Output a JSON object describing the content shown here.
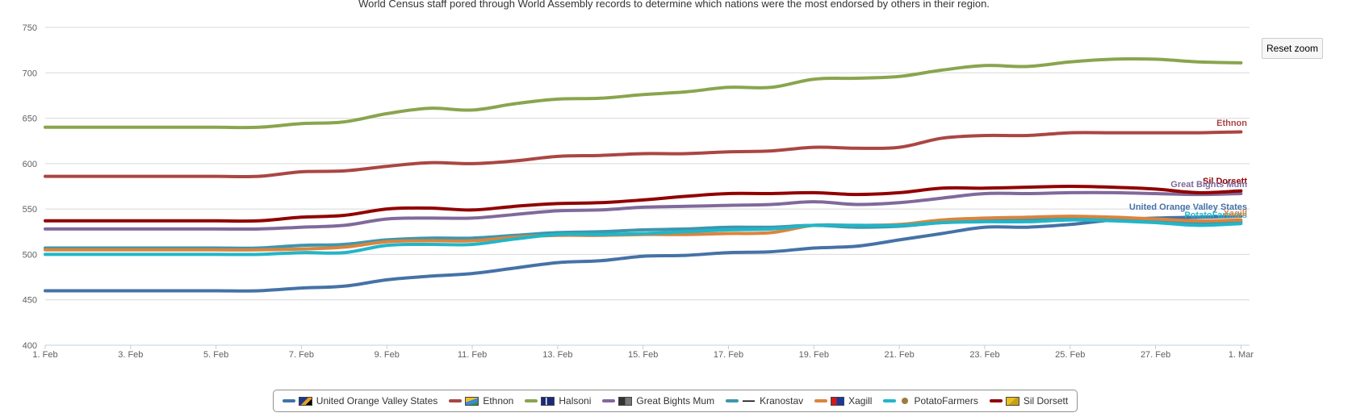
{
  "subtitle": "World Census staff pored through World Assembly records to determine which nations were the most endorsed by others in their region.",
  "reset_zoom_label": "Reset zoom",
  "chart_data": {
    "type": "line",
    "title": "",
    "subtitle": "World Census staff pored through World Assembly records to determine which nations were the most endorsed by others in their region.",
    "xlabel": "",
    "ylabel": "",
    "ylim": [
      400,
      750
    ],
    "y_ticks": [
      400,
      450,
      500,
      550,
      600,
      650,
      700,
      750
    ],
    "x_day_range": [
      1,
      29.2
    ],
    "x_ticks": [
      {
        "day": 1,
        "label": "1. Feb"
      },
      {
        "day": 3,
        "label": "3. Feb"
      },
      {
        "day": 5,
        "label": "5. Feb"
      },
      {
        "day": 7,
        "label": "7. Feb"
      },
      {
        "day": 9,
        "label": "9. Feb"
      },
      {
        "day": 11,
        "label": "11. Feb"
      },
      {
        "day": 13,
        "label": "13. Feb"
      },
      {
        "day": 15,
        "label": "15. Feb"
      },
      {
        "day": 17,
        "label": "17. Feb"
      },
      {
        "day": 19,
        "label": "19. Feb"
      },
      {
        "day": 21,
        "label": "21. Feb"
      },
      {
        "day": 23,
        "label": "23. Feb"
      },
      {
        "day": 25,
        "label": "25. Feb"
      },
      {
        "day": 27,
        "label": "27. Feb"
      },
      {
        "day": 29,
        "label": "1. Mar"
      }
    ],
    "x": [
      1,
      2,
      3,
      4,
      5,
      6,
      7,
      8,
      9,
      10,
      11,
      12,
      13,
      14,
      15,
      16,
      17,
      18,
      19,
      20,
      21,
      22,
      23,
      24,
      25,
      26,
      27,
      28,
      29
    ],
    "grid": true,
    "legend_position": "bottom-center",
    "series": [
      {
        "name": "United Orange Valley States",
        "color": "#4572a7",
        "flag": "uovs-flag",
        "values": [
          460,
          460,
          460,
          460,
          460,
          460,
          463,
          465,
          472,
          476,
          479,
          485,
          491,
          493,
          498,
          499,
          502,
          503,
          507,
          509,
          516,
          523,
          530,
          530,
          533,
          538,
          540,
          541,
          542
        ]
      },
      {
        "name": "Ethnon",
        "color": "#aa4643",
        "flag": "ethnon-flag",
        "values": [
          586,
          586,
          586,
          586,
          586,
          586,
          591,
          592,
          597,
          601,
          600,
          603,
          608,
          609,
          611,
          611,
          613,
          614,
          618,
          617,
          618,
          628,
          631,
          631,
          634,
          634,
          634,
          634,
          635
        ]
      },
      {
        "name": "Halsoni",
        "color": "#89a54e",
        "flag": "halsoni-flag",
        "values": [
          640,
          640,
          640,
          640,
          640,
          640,
          644,
          646,
          655,
          661,
          659,
          666,
          671,
          672,
          676,
          679,
          684,
          684,
          693,
          694,
          696,
          703,
          708,
          707,
          712,
          715,
          715,
          712,
          711
        ]
      },
      {
        "name": "Great Bights Mum",
        "color": "#80699b",
        "flag": "gbm-flag",
        "values": [
          528,
          528,
          528,
          528,
          528,
          528,
          530,
          532,
          539,
          540,
          540,
          544,
          548,
          549,
          552,
          553,
          554,
          555,
          558,
          555,
          557,
          562,
          567,
          567,
          568,
          568,
          567,
          566,
          567
        ]
      },
      {
        "name": "Kranostav",
        "color": "#3d96ae",
        "flag": "kranostav-flag",
        "values": [
          507,
          507,
          507,
          507,
          507,
          507,
          510,
          511,
          516,
          518,
          518,
          521,
          524,
          525,
          527,
          528,
          530,
          530,
          532,
          530,
          531,
          535,
          537,
          538,
          539,
          538,
          537,
          535,
          536
        ]
      },
      {
        "name": "Xagill",
        "color": "#db843d",
        "flag": "xagill-flag",
        "values": [
          505,
          505,
          505,
          505,
          505,
          505,
          506,
          508,
          514,
          515,
          515,
          519,
          521,
          521,
          522,
          522,
          523,
          524,
          532,
          532,
          533,
          538,
          540,
          541,
          542,
          541,
          539,
          537,
          538
        ]
      },
      {
        "name": "PotatoFarmers",
        "color": "#21b6c8",
        "flag": "potato-flag",
        "values": [
          500,
          500,
          500,
          500,
          500,
          500,
          502,
          502,
          510,
          511,
          511,
          517,
          522,
          522,
          523,
          525,
          527,
          528,
          532,
          532,
          532,
          535,
          536,
          536,
          538,
          537,
          535,
          532,
          534
        ]
      },
      {
        "name": "Sil Dorsett",
        "color": "#910000",
        "flag": "sildorsett-flag",
        "values": [
          537,
          537,
          537,
          537,
          537,
          537,
          541,
          543,
          550,
          551,
          549,
          553,
          556,
          557,
          560,
          564,
          567,
          567,
          568,
          566,
          568,
          573,
          573,
          574,
          575,
          574,
          572,
          568,
          570
        ]
      }
    ],
    "end_labels": [
      {
        "text": "Ethnon",
        "color": "#aa4643"
      },
      {
        "text": "Sil Dorsett",
        "color": "#910000"
      },
      {
        "text": "Great Bights Mum",
        "color": "#80699b"
      },
      {
        "text": "United Orange Valley States",
        "color": "#4572a7"
      },
      {
        "text": "PotatoFarmers",
        "color": "#21b6c8"
      },
      {
        "text": "Xagill",
        "color": "#db843d"
      }
    ]
  }
}
